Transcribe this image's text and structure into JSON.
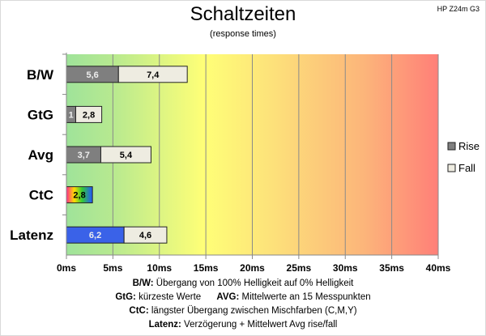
{
  "chart_data": {
    "type": "bar",
    "orientation": "horizontal-stacked",
    "title": "Schaltzeiten",
    "subtitle": "(response times)",
    "model": "HP Z24m G3",
    "categories": [
      "B/W",
      "GtG",
      "Avg",
      "CtC",
      "Latenz"
    ],
    "series": [
      {
        "name": "Rise",
        "values": [
          5.6,
          1,
          3.7,
          2.8,
          6.2
        ],
        "labels": [
          "5,6",
          "1",
          "3,7",
          "2,8",
          "6,2"
        ]
      },
      {
        "name": "Fall",
        "values": [
          7.4,
          2.8,
          5.4,
          null,
          4.6
        ],
        "labels": [
          "7,4",
          "2,8",
          "5,4",
          "",
          "4,6"
        ]
      }
    ],
    "xlim": [
      0,
      40
    ],
    "xticks": [
      0,
      5,
      10,
      15,
      20,
      25,
      30,
      35,
      40
    ],
    "xtick_labels": [
      "0ms",
      "5ms",
      "10ms",
      "15ms",
      "20ms",
      "25ms",
      "30ms",
      "35ms",
      "40ms"
    ],
    "legend": "right",
    "colors": {
      "rise": "#7f7f7f",
      "fall": "#eeece1",
      "latenz_rise": "#3a62e8"
    }
  },
  "notes": [
    {
      "key": "B/W:",
      "text": " Übergang von 100% Helligkeit auf 0% Helligkeit"
    },
    {
      "key": "GtG:",
      "text": " kürzeste Werte",
      "key2": "AVG:",
      "text2": " Mittelwerte an 15 Messpunkten"
    },
    {
      "key": "CtC:",
      "text": " längster Übergang zwischen Mischfarben (C,M,Y)"
    },
    {
      "key": "Latenz:",
      "text": " Verzögerung + Mittelwert Avg rise/fall"
    }
  ]
}
